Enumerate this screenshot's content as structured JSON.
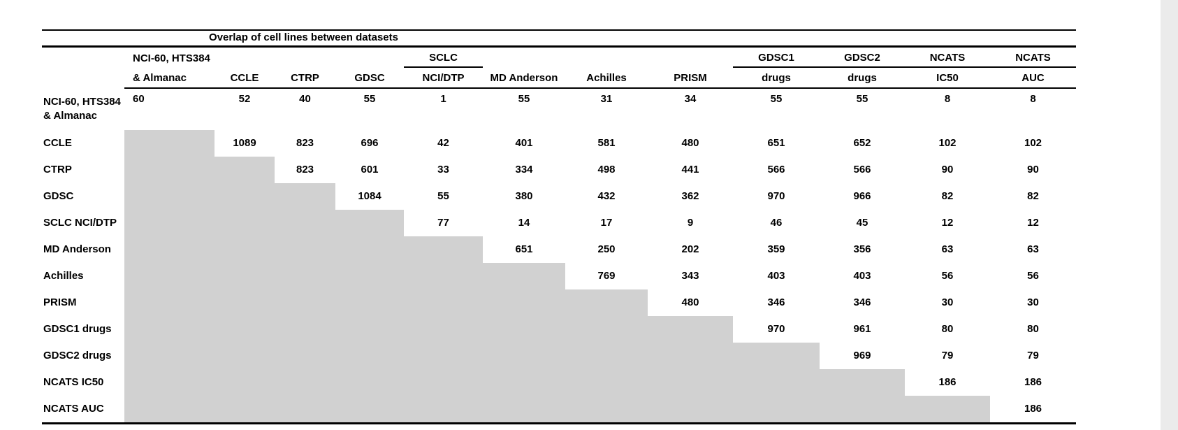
{
  "chart_data": {
    "type": "table",
    "title": "Overlap of cell lines between datasets",
    "columns": [
      {
        "top": "NCI-60, HTS384",
        "bottom": "& Almanac"
      },
      {
        "top": "",
        "bottom": "CCLE"
      },
      {
        "top": "",
        "bottom": "CTRP"
      },
      {
        "top": "",
        "bottom": "GDSC"
      },
      {
        "top": "SCLC",
        "bottom": "NCI/DTP"
      },
      {
        "top": "",
        "bottom": "MD Anderson"
      },
      {
        "top": "",
        "bottom": "Achilles"
      },
      {
        "top": "",
        "bottom": "PRISM"
      },
      {
        "top": "GDSC1",
        "bottom": "drugs"
      },
      {
        "top": "GDSC2",
        "bottom": "drugs"
      },
      {
        "top": "NCATS",
        "bottom": "IC50"
      },
      {
        "top": "NCATS",
        "bottom": "AUC"
      }
    ],
    "row_labels": [
      "NCI-60, HTS384 & Almanac",
      "CCLE",
      "CTRP",
      "GDSC",
      "SCLC NCI/DTP",
      "MD Anderson",
      "Achilles",
      "PRISM",
      "GDSC1 drugs",
      "GDSC2 drugs",
      "NCATS IC50",
      "NCATS AUC"
    ],
    "matrix": [
      [
        60,
        52,
        40,
        55,
        1,
        55,
        31,
        34,
        55,
        55,
        8,
        8
      ],
      [
        null,
        1089,
        823,
        696,
        42,
        401,
        581,
        480,
        651,
        652,
        102,
        102
      ],
      [
        null,
        null,
        823,
        601,
        33,
        334,
        498,
        441,
        566,
        566,
        90,
        90
      ],
      [
        null,
        null,
        null,
        1084,
        55,
        380,
        432,
        362,
        970,
        966,
        82,
        82
      ],
      [
        null,
        null,
        null,
        null,
        77,
        14,
        17,
        9,
        46,
        45,
        12,
        12
      ],
      [
        null,
        null,
        null,
        null,
        null,
        651,
        250,
        202,
        359,
        356,
        63,
        63
      ],
      [
        null,
        null,
        null,
        null,
        null,
        null,
        769,
        343,
        403,
        403,
        56,
        56
      ],
      [
        null,
        null,
        null,
        null,
        null,
        null,
        null,
        480,
        346,
        346,
        30,
        30
      ],
      [
        null,
        null,
        null,
        null,
        null,
        null,
        null,
        null,
        970,
        961,
        80,
        80
      ],
      [
        null,
        null,
        null,
        null,
        null,
        null,
        null,
        null,
        null,
        969,
        79,
        79
      ],
      [
        null,
        null,
        null,
        null,
        null,
        null,
        null,
        null,
        null,
        null,
        186,
        186
      ],
      [
        null,
        null,
        null,
        null,
        null,
        null,
        null,
        null,
        null,
        null,
        null,
        186
      ]
    ],
    "layout_note": "upper-triangular matrix; lower-triangle cells are shaded gray with no values"
  },
  "colors": {
    "background": "#ffffff",
    "text": "#000000",
    "border": "#000000",
    "shaded_cell": "#d1d1d1"
  }
}
